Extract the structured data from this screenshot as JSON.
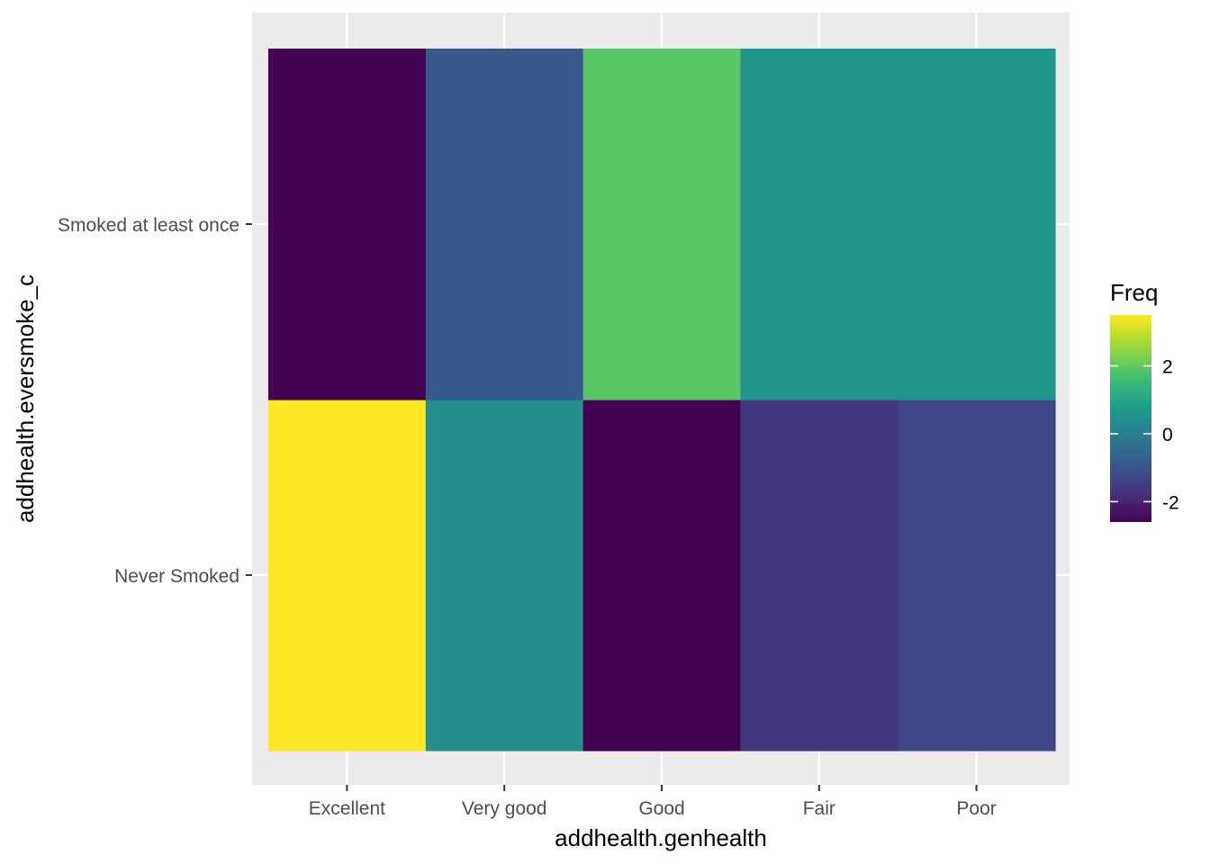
{
  "chart_data": {
    "type": "heatmap",
    "title": "",
    "xlabel": "addhealth.genhealth",
    "ylabel": "addhealth.eversmoke_c",
    "x_categories": [
      "Excellent",
      "Very good",
      "Good",
      "Fair",
      "Poor"
    ],
    "y_categories": [
      "Never Smoked",
      "Smoked at least once"
    ],
    "values": [
      [
        3.5,
        0.4,
        -2.6,
        -1.6,
        -1.3
      ],
      [
        -2.6,
        -0.9,
        1.9,
        0.6,
        0.6
      ]
    ],
    "color_scale": "viridis",
    "color_limits": [
      -2.6,
      3.5
    ],
    "grid": true,
    "legend": {
      "title": "Freq",
      "position": "right",
      "breaks": [
        2,
        0,
        -2
      ],
      "labels": [
        "2",
        "0",
        "-2"
      ]
    },
    "colors": {
      "panel_background": "#ebebeb",
      "grid": "#ffffff"
    }
  }
}
